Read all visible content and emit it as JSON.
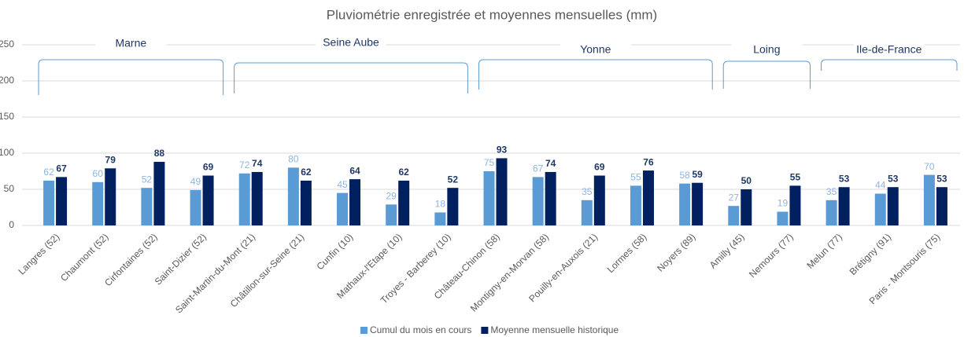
{
  "chart_data": {
    "type": "bar",
    "title": "Pluviométrie enregistrée et moyennes mensuelles (mm)",
    "annotations": [
      "Marne",
      "Seine Aube",
      "Yonne",
      "Loing",
      "Ile-de-France"
    ],
    "categories": [
      "Langres (52)",
      "Chaumont (52)",
      "Cirfontaines (52)",
      "Saint-Dizier (52)",
      "Saint-Martin-du-Mont (21)",
      "Châtillon-sur-Seine (21)",
      "Cunfin (10)",
      "Mathaux-l'Etape (10)",
      "Troyes - Barberey (10)",
      "Château-Chinon (58)",
      "Montigny-en-Morvan (58)",
      "Pouilly-en-Auxois (21)",
      "Lormes (58)",
      "Noyers (89)",
      "Amilly (45)",
      "Nemours (77)",
      "Melun (77)",
      "Brétigny (91)",
      "Paris - Montsouris (75)"
    ],
    "series": [
      {
        "name": "Cumul du mois en cours",
        "color": "#5b9bd5",
        "values": [
          62,
          60,
          52,
          49,
          72,
          80,
          45,
          29,
          18,
          75,
          67,
          35,
          55,
          58,
          27,
          19,
          35,
          44,
          70
        ]
      },
      {
        "name": "Moyenne mensuelle historique",
        "color": "#002060",
        "values": [
          67,
          79,
          88,
          69,
          74,
          62,
          64,
          62,
          52,
          93,
          74,
          69,
          76,
          59,
          50,
          55,
          53,
          53,
          53
        ]
      }
    ],
    "ylim": [
      0,
      250
    ],
    "yticks": [
      0,
      50,
      100,
      150,
      200,
      250
    ],
    "grid": true,
    "legend": "bottom"
  }
}
